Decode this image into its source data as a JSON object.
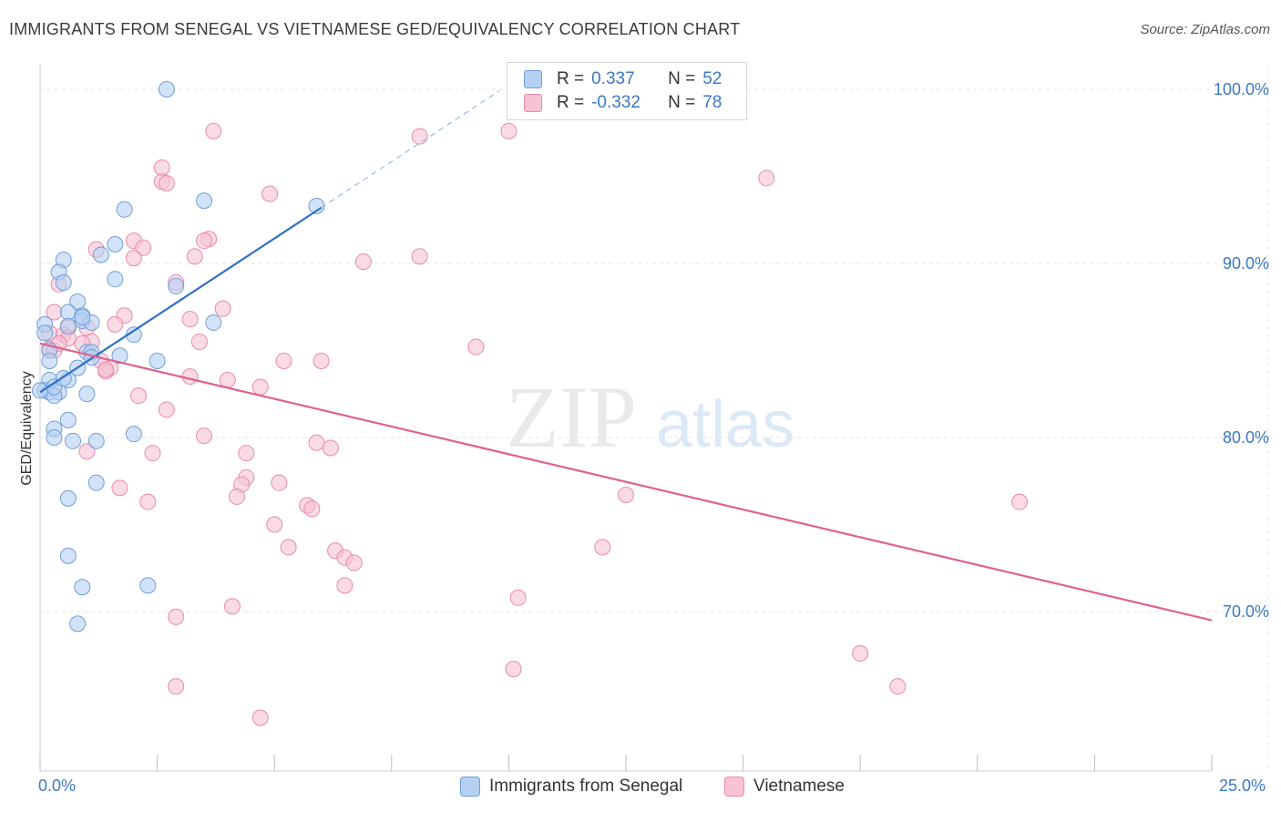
{
  "title": "IMMIGRANTS FROM SENEGAL VS VIETNAMESE GED/EQUIVALENCY CORRELATION CHART",
  "source": "Source: ZipAtlas.com",
  "watermark": {
    "zip": "ZIP",
    "atlas": "atlas"
  },
  "legend": {
    "rows": [
      {
        "r_label": "R =",
        "r_value": "0.337",
        "n_label": "N =",
        "n_value": "52"
      },
      {
        "r_label": "R =",
        "r_value": "-0.332",
        "n_label": "N =",
        "n_value": "78"
      }
    ]
  },
  "colors": {
    "senegal_fill": "#b6d0f2",
    "senegal_stroke": "#6e9ed8",
    "senegal_line": "#2f6fc9",
    "vietnamese_fill": "#f7c3d4",
    "vietnamese_stroke": "#e88aaa",
    "vietnamese_line": "#e0608e",
    "axis_text": "#3b78c4",
    "grid": "#e6e6e6"
  },
  "chart_data": {
    "type": "scatter",
    "title": "IMMIGRANTS FROM SENEGAL VS VIETNAMESE GED/EQUIVALENCY CORRELATION CHART",
    "xlabel": "",
    "ylabel": "GED/Equivalency",
    "xlim": [
      0,
      25
    ],
    "ylim": [
      60,
      102
    ],
    "x_tick_labels": [
      "0.0%",
      "25.0%"
    ],
    "y_ticks": [
      70,
      80,
      90,
      100
    ],
    "y_tick_labels": [
      "70.0%",
      "80.0%",
      "90.0%",
      "100.0%"
    ],
    "grid": true,
    "legend_position": "bottom-center",
    "series": [
      {
        "name": "Immigrants from Senegal",
        "R": 0.337,
        "N": 52,
        "trend": {
          "x0": 0.0,
          "y0": 82.6,
          "x1": 6.0,
          "y1": 93.2,
          "dashed_to_x": 9.8
        },
        "points": [
          [
            2.7,
            100.0
          ],
          [
            1.8,
            93.1
          ],
          [
            3.5,
            93.6
          ],
          [
            5.9,
            93.3
          ],
          [
            1.6,
            91.1
          ],
          [
            1.3,
            90.5
          ],
          [
            0.5,
            90.2
          ],
          [
            0.4,
            89.5
          ],
          [
            0.5,
            88.9
          ],
          [
            1.6,
            89.1
          ],
          [
            2.9,
            88.7
          ],
          [
            0.8,
            87.8
          ],
          [
            0.6,
            87.2
          ],
          [
            0.9,
            87.0
          ],
          [
            0.1,
            86.5
          ],
          [
            0.6,
            86.4
          ],
          [
            0.9,
            86.7
          ],
          [
            1.1,
            86.6
          ],
          [
            3.7,
            86.6
          ],
          [
            0.1,
            86.0
          ],
          [
            2.0,
            85.9
          ],
          [
            0.2,
            85.0
          ],
          [
            1.0,
            84.9
          ],
          [
            1.1,
            84.9
          ],
          [
            1.1,
            84.6
          ],
          [
            1.7,
            84.7
          ],
          [
            2.5,
            84.4
          ],
          [
            0.2,
            84.4
          ],
          [
            0.8,
            84.0
          ],
          [
            0.2,
            83.3
          ],
          [
            0.6,
            83.3
          ],
          [
            0.1,
            82.7
          ],
          [
            0.2,
            82.6
          ],
          [
            0.4,
            82.6
          ],
          [
            0.3,
            82.4
          ],
          [
            1.0,
            82.5
          ],
          [
            0.6,
            81.0
          ],
          [
            0.3,
            80.5
          ],
          [
            0.3,
            80.0
          ],
          [
            1.2,
            79.8
          ],
          [
            0.7,
            79.8
          ],
          [
            2.0,
            80.2
          ],
          [
            1.2,
            77.4
          ],
          [
            0.6,
            76.5
          ],
          [
            0.6,
            73.2
          ],
          [
            0.9,
            71.4
          ],
          [
            2.3,
            71.5
          ],
          [
            0.8,
            69.3
          ],
          [
            0.0,
            82.7
          ],
          [
            0.3,
            82.9
          ],
          [
            0.5,
            83.4
          ],
          [
            0.9,
            86.9
          ]
        ]
      },
      {
        "name": "Vietnamese",
        "R": -0.332,
        "N": 78,
        "trend": {
          "x0": 0.0,
          "y0": 85.4,
          "x1": 25.0,
          "y1": 69.5
        },
        "points": [
          [
            10.0,
            97.6
          ],
          [
            3.7,
            97.6
          ],
          [
            8.1,
            97.3
          ],
          [
            2.6,
            95.5
          ],
          [
            2.6,
            94.7
          ],
          [
            2.7,
            94.6
          ],
          [
            15.5,
            94.9
          ],
          [
            4.9,
            94.0
          ],
          [
            3.6,
            91.4
          ],
          [
            3.5,
            91.3
          ],
          [
            2.0,
            91.3
          ],
          [
            2.2,
            90.9
          ],
          [
            1.2,
            90.8
          ],
          [
            2.0,
            90.3
          ],
          [
            3.3,
            90.4
          ],
          [
            6.9,
            90.1
          ],
          [
            8.1,
            90.4
          ],
          [
            2.9,
            88.9
          ],
          [
            0.4,
            88.8
          ],
          [
            3.9,
            87.4
          ],
          [
            0.3,
            87.2
          ],
          [
            1.8,
            87.0
          ],
          [
            3.2,
            86.8
          ],
          [
            1.6,
            86.5
          ],
          [
            0.6,
            86.3
          ],
          [
            1.0,
            86.3
          ],
          [
            0.2,
            86.0
          ],
          [
            0.5,
            85.9
          ],
          [
            1.1,
            85.5
          ],
          [
            3.4,
            85.5
          ],
          [
            0.2,
            85.1
          ],
          [
            9.3,
            85.2
          ],
          [
            0.3,
            85.0
          ],
          [
            1.3,
            84.4
          ],
          [
            1.5,
            84.0
          ],
          [
            1.4,
            83.8
          ],
          [
            5.2,
            84.4
          ],
          [
            6.0,
            84.4
          ],
          [
            3.2,
            83.5
          ],
          [
            4.0,
            83.3
          ],
          [
            2.1,
            82.4
          ],
          [
            4.7,
            82.9
          ],
          [
            2.7,
            81.6
          ],
          [
            3.5,
            80.1
          ],
          [
            5.9,
            79.7
          ],
          [
            6.2,
            79.4
          ],
          [
            2.4,
            79.1
          ],
          [
            1.0,
            79.2
          ],
          [
            4.4,
            79.1
          ],
          [
            4.4,
            77.7
          ],
          [
            4.3,
            77.3
          ],
          [
            5.1,
            77.4
          ],
          [
            1.7,
            77.1
          ],
          [
            4.2,
            76.6
          ],
          [
            12.5,
            76.7
          ],
          [
            2.3,
            76.3
          ],
          [
            5.7,
            76.1
          ],
          [
            5.8,
            75.9
          ],
          [
            20.9,
            76.3
          ],
          [
            5.0,
            75.0
          ],
          [
            5.3,
            73.7
          ],
          [
            12.0,
            73.7
          ],
          [
            6.3,
            73.5
          ],
          [
            6.5,
            73.1
          ],
          [
            6.7,
            72.8
          ],
          [
            6.5,
            71.5
          ],
          [
            10.2,
            70.8
          ],
          [
            4.1,
            70.3
          ],
          [
            2.9,
            69.7
          ],
          [
            10.1,
            66.7
          ],
          [
            17.5,
            67.6
          ],
          [
            18.3,
            65.7
          ],
          [
            2.9,
            65.7
          ],
          [
            4.7,
            63.9
          ],
          [
            0.6,
            85.7
          ],
          [
            1.4,
            83.9
          ],
          [
            0.9,
            85.4
          ],
          [
            0.4,
            85.4
          ]
        ]
      }
    ]
  }
}
